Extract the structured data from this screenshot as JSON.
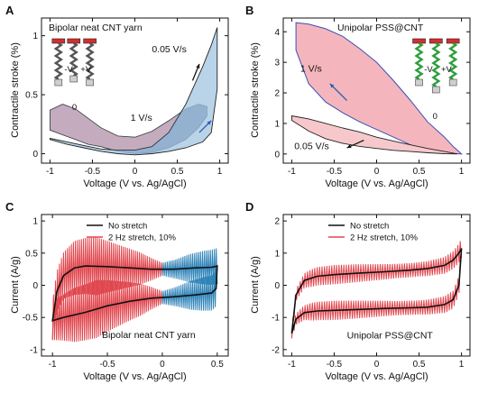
{
  "chart_data": [
    {
      "panel": "A",
      "type": "line",
      "title": "Bipolar neat CNT yarn",
      "xlabel": "Voltage (V vs. Ag/AgCl)",
      "ylabel": "Contractile stroke (%)",
      "xlim": [
        -1.1,
        1.1
      ],
      "ylim": [
        -0.08,
        1.15
      ],
      "xticks": [
        -1.0,
        -0.5,
        0.0,
        0.5,
        1.0
      ],
      "yticks": [
        0.0,
        0.5,
        1.0
      ],
      "annotations": [
        "0.05 V/s",
        "1 V/s"
      ],
      "inset_labels": [
        "-V",
        "+V",
        "0"
      ],
      "series": [
        {
          "name": "0.05 V/s",
          "color": "#a8c8e4",
          "upper": {
            "x": [
              -1.0,
              -0.8,
              -0.6,
              -0.4,
              -0.2,
              0.0,
              0.2,
              0.4,
              0.6,
              0.8,
              0.9,
              0.97
            ],
            "y": [
              0.13,
              0.1,
              0.07,
              0.04,
              0.03,
              0.03,
              0.06,
              0.18,
              0.42,
              0.74,
              0.92,
              1.07
            ]
          },
          "lower": {
            "x": [
              -1.0,
              -0.8,
              -0.6,
              -0.4,
              -0.2,
              0.0,
              0.2,
              0.4,
              0.6,
              0.8,
              0.9,
              0.97
            ],
            "y": [
              0.12,
              0.08,
              0.05,
              0.02,
              0.0,
              -0.01,
              0.0,
              0.02,
              0.05,
              0.1,
              0.18,
              0.55
            ]
          }
        },
        {
          "name": "1 V/s",
          "color": "#f4b6bc",
          "upper": {
            "x": [
              -1.0,
              -0.85,
              -0.7,
              -0.55,
              -0.4,
              -0.2,
              0.0,
              0.2,
              0.4,
              0.6,
              0.75,
              0.85
            ],
            "y": [
              0.37,
              0.42,
              0.38,
              0.3,
              0.22,
              0.15,
              0.14,
              0.19,
              0.28,
              0.38,
              0.42,
              0.4
            ]
          },
          "lower": {
            "x": [
              -1.0,
              -0.85,
              -0.7,
              -0.55,
              -0.4,
              -0.2,
              0.0,
              0.2,
              0.4,
              0.6,
              0.75,
              0.85
            ],
            "y": [
              0.2,
              0.16,
              0.12,
              0.08,
              0.06,
              0.02,
              0.0,
              0.01,
              0.05,
              0.12,
              0.22,
              0.32
            ]
          }
        }
      ]
    },
    {
      "panel": "B",
      "type": "line",
      "title": "Unipolar PSS@CNT",
      "xlabel": "Voltage (V vs. Ag/AgCl)",
      "ylabel": "Contractile stroke (%)",
      "xlim": [
        -1.1,
        1.1
      ],
      "ylim": [
        -0.3,
        4.45
      ],
      "xticks": [
        -1.0,
        -0.5,
        0.0,
        0.5,
        1.0
      ],
      "yticks": [
        0,
        1,
        2,
        3,
        4
      ],
      "annotations": [
        "1 V/s",
        "0.05 V/s"
      ],
      "inset_labels": [
        "-V",
        "+V",
        "0"
      ],
      "series": [
        {
          "name": "1 V/s",
          "color": "#f4b6bc",
          "upper": {
            "x": [
              -0.95,
              -0.8,
              -0.6,
              -0.4,
              -0.2,
              0.0,
              0.2,
              0.4,
              0.6,
              0.8,
              0.9,
              1.0
            ],
            "y": [
              4.3,
              4.25,
              4.1,
              3.85,
              3.45,
              3.0,
              2.4,
              1.75,
              1.05,
              0.55,
              0.25,
              0.0
            ]
          },
          "lower": {
            "x": [
              -0.95,
              -0.8,
              -0.6,
              -0.4,
              -0.2,
              0.0,
              0.2,
              0.4,
              0.6,
              0.8,
              0.9,
              1.0
            ],
            "y": [
              3.4,
              2.3,
              1.7,
              1.35,
              1.05,
              0.8,
              0.55,
              0.3,
              0.12,
              0.05,
              0.02,
              0.0
            ]
          }
        },
        {
          "name": "0.05 V/s",
          "color": "#f6c8cc",
          "upper": {
            "x": [
              -1.0,
              -0.8,
              -0.6,
              -0.4,
              -0.2,
              0.0,
              0.2,
              0.4,
              0.6,
              0.8,
              0.95
            ],
            "y": [
              1.25,
              1.15,
              1.0,
              0.85,
              0.72,
              0.55,
              0.42,
              0.3,
              0.18,
              0.08,
              0.0
            ]
          },
          "lower": {
            "x": [
              -1.0,
              -0.8,
              -0.6,
              -0.4,
              -0.2,
              0.0,
              0.2,
              0.4,
              0.6,
              0.8,
              0.95
            ],
            "y": [
              1.1,
              0.75,
              0.5,
              0.35,
              0.25,
              0.18,
              0.12,
              0.08,
              0.04,
              0.01,
              0.0
            ]
          }
        }
      ]
    },
    {
      "panel": "C",
      "type": "line",
      "title": "Bipolar neat CNT yarn",
      "xlabel": "Voltage (V vs. Ag/AgCl)",
      "ylabel": "Current (A/g)",
      "xlim": [
        -1.1,
        0.6
      ],
      "ylim": [
        -1.1,
        1.1
      ],
      "xticks": [
        -1.0,
        -0.5,
        0.0,
        0.5
      ],
      "yticks": [
        -1.0,
        -0.5,
        0.0,
        0.5,
        1.0
      ],
      "legend": [
        "No stretch",
        "2 Hz stretch, 10%"
      ],
      "legend_position": "top-center",
      "series": [
        {
          "name": "No stretch",
          "color": "#111111",
          "upper": {
            "x": [
              -1.0,
              -0.96,
              -0.9,
              -0.8,
              -0.7,
              -0.5,
              -0.3,
              -0.1,
              0.1,
              0.3,
              0.45,
              0.48,
              0.5
            ],
            "y": [
              -0.55,
              -0.1,
              0.15,
              0.27,
              0.3,
              0.29,
              0.27,
              0.25,
              0.25,
              0.27,
              0.28,
              0.29,
              0.3
            ]
          },
          "lower": {
            "x": [
              -1.0,
              -0.9,
              -0.7,
              -0.5,
              -0.3,
              -0.1,
              0.1,
              0.3,
              0.45,
              0.49,
              0.5
            ],
            "y": [
              -0.55,
              -0.5,
              -0.42,
              -0.32,
              -0.25,
              -0.2,
              -0.18,
              -0.15,
              -0.12,
              -0.05,
              0.3
            ]
          }
        },
        {
          "name": "2 Hz stretch, 10%",
          "color": "#e0464e",
          "band_x": [
            -1.0,
            0.0
          ],
          "amplitude": [
            0.3,
            0.42,
            0.45,
            0.35,
            0.25,
            0.1
          ]
        },
        {
          "name": "2 Hz stretch, 10% (blue segment)",
          "color": "#2e83b8",
          "band_x": [
            0.0,
            0.5
          ],
          "amplitude": [
            0.1,
            0.15,
            0.22,
            0.26,
            0.28
          ]
        }
      ]
    },
    {
      "panel": "D",
      "type": "line",
      "title": "Unipolar PSS@CNT",
      "xlabel": "Voltage (V vs. Ag/AgCl)",
      "ylabel": "Current (A/g)",
      "xlim": [
        -1.1,
        1.1
      ],
      "ylim": [
        -2.2,
        2.2
      ],
      "xticks": [
        -1.0,
        -0.5,
        0.0,
        0.5,
        1.0
      ],
      "yticks": [
        -2,
        -1,
        0,
        1,
        2
      ],
      "legend": [
        "No stretch",
        "2 Hz stretch, 10%"
      ],
      "legend_position": "top-center",
      "series": [
        {
          "name": "No stretch",
          "color": "#111111",
          "upper": {
            "x": [
              -1.0,
              -0.95,
              -0.85,
              -0.7,
              -0.5,
              -0.2,
              0.1,
              0.4,
              0.6,
              0.8,
              0.9,
              0.97,
              1.0
            ],
            "y": [
              -1.5,
              -0.3,
              0.15,
              0.28,
              0.33,
              0.38,
              0.42,
              0.47,
              0.52,
              0.62,
              0.78,
              1.0,
              1.15
            ]
          },
          "lower": {
            "x": [
              -1.0,
              -0.95,
              -0.85,
              -0.7,
              -0.5,
              -0.2,
              0.1,
              0.4,
              0.6,
              0.8,
              0.9,
              0.97,
              1.0
            ],
            "y": [
              -1.5,
              -1.05,
              -0.85,
              -0.8,
              -0.78,
              -0.75,
              -0.72,
              -0.7,
              -0.68,
              -0.6,
              -0.45,
              0.0,
              1.15
            ]
          }
        },
        {
          "name": "2 Hz stretch, 10%",
          "color": "#e0464e",
          "band_x": [
            -1.0,
            1.0
          ],
          "amplitude": [
            0.15,
            0.28,
            0.3,
            0.28,
            0.25,
            0.22,
            0.22,
            0.25,
            0.3
          ]
        }
      ]
    }
  ]
}
